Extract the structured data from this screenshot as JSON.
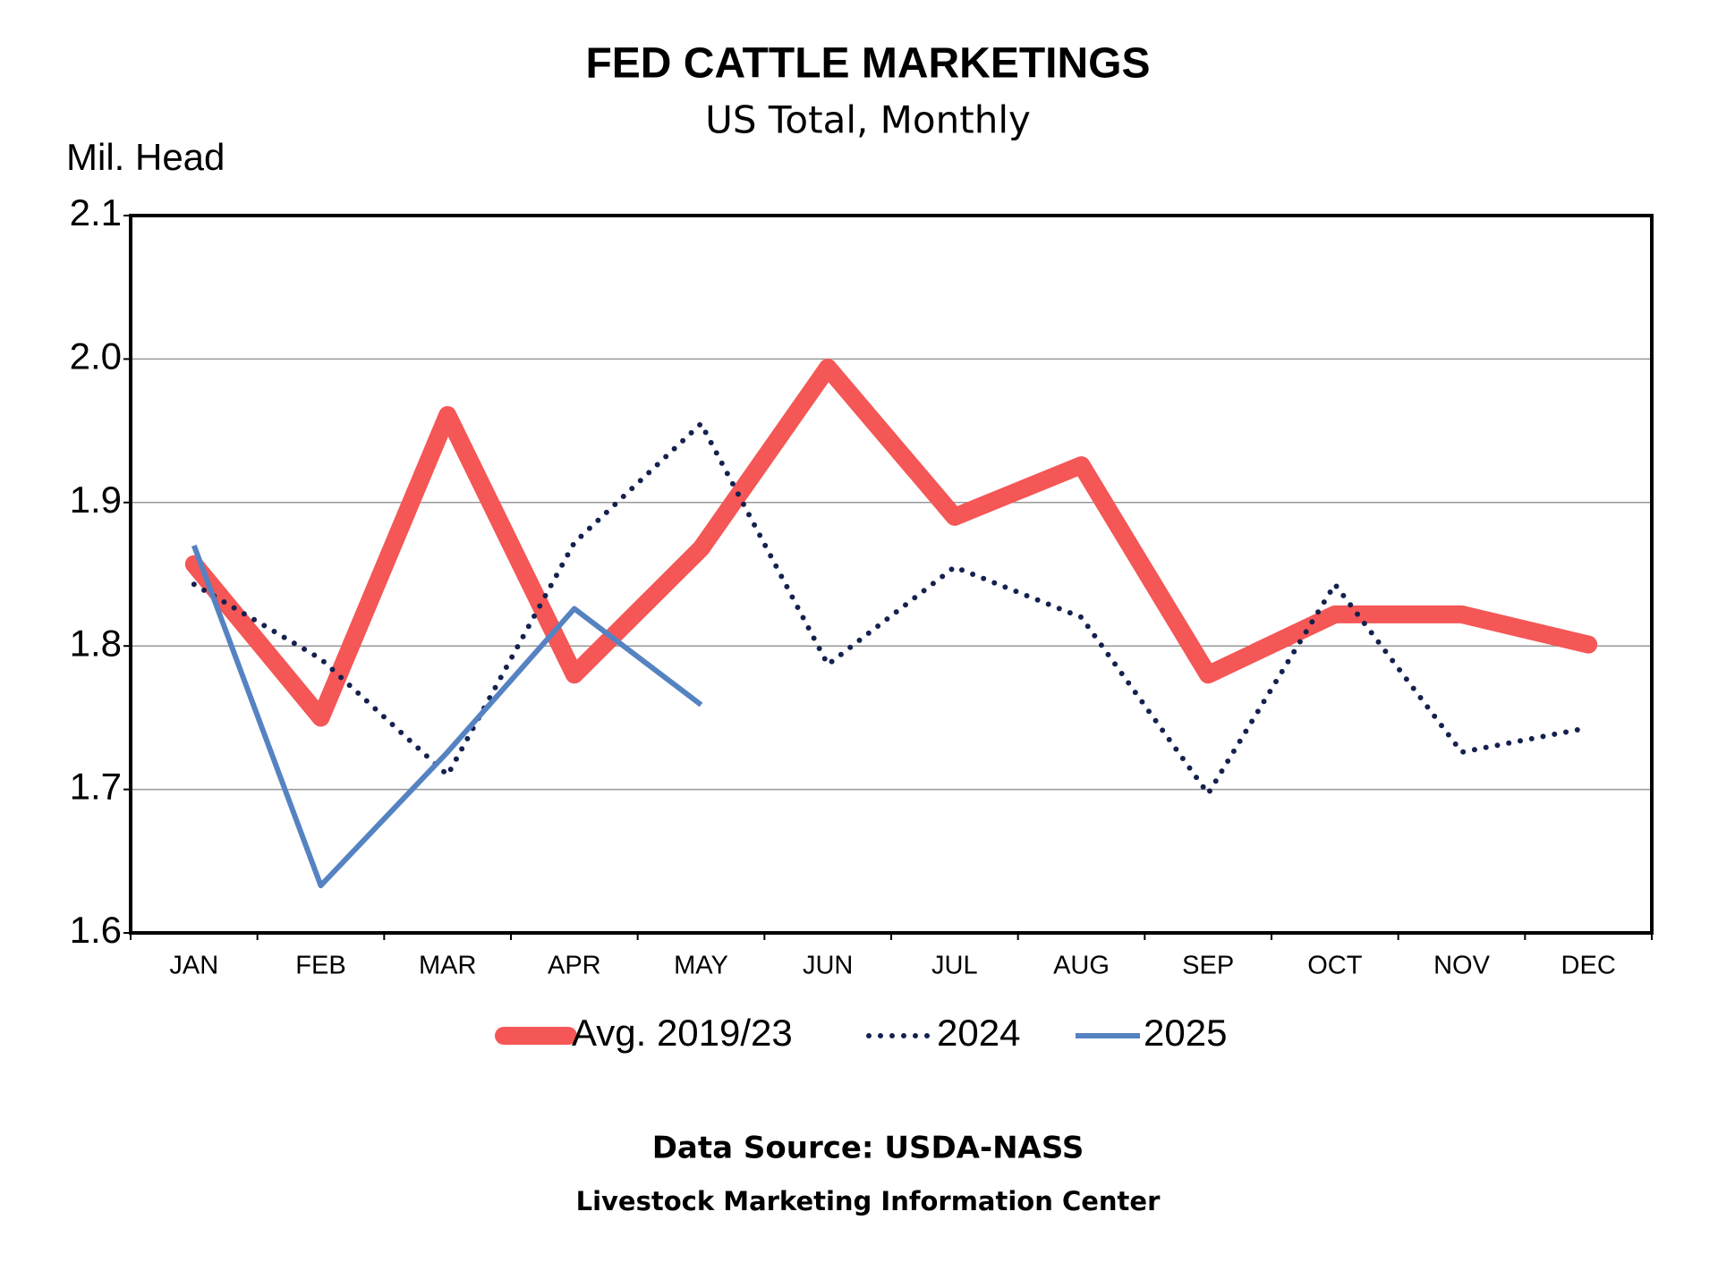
{
  "chart_data": {
    "type": "line",
    "title": "FED CATTLE MARKETINGS",
    "subtitle": "US Total, Monthly",
    "y_label": "Mil. Head",
    "categories": [
      "JAN",
      "FEB",
      "MAR",
      "APR",
      "MAY",
      "JUN",
      "JUL",
      "AUG",
      "SEP",
      "OCT",
      "NOV",
      "DEC"
    ],
    "series": [
      {
        "name": "Avg. 2019/23",
        "color": "#f55656",
        "style": "solid-thick",
        "values": [
          1.857,
          1.75,
          1.961,
          1.78,
          1.868,
          1.994,
          1.89,
          1.926,
          1.78,
          1.822,
          1.822,
          1.801
        ]
      },
      {
        "name": "2024",
        "color": "#14214f",
        "style": "dotted",
        "values": [
          1.843,
          1.791,
          1.71,
          1.872,
          1.955,
          1.787,
          1.855,
          1.82,
          1.697,
          1.843,
          1.726,
          1.743
        ]
      },
      {
        "name": "2025",
        "color": "#5583c2",
        "style": "solid",
        "values": [
          1.87,
          1.633,
          1.726,
          1.826,
          1.759,
          null,
          null,
          null,
          null,
          null,
          null,
          null
        ]
      }
    ],
    "ylim": [
      1.6,
      2.1
    ],
    "yticks": [
      1.6,
      1.7,
      1.8,
      1.9,
      {
        "value": 2,
        "label": "2.0"
      },
      2.1
    ],
    "grid": true,
    "legend": "bottom",
    "source": "Data Source:  USDA-NASS",
    "footer": "Livestock Marketing Information Center"
  }
}
